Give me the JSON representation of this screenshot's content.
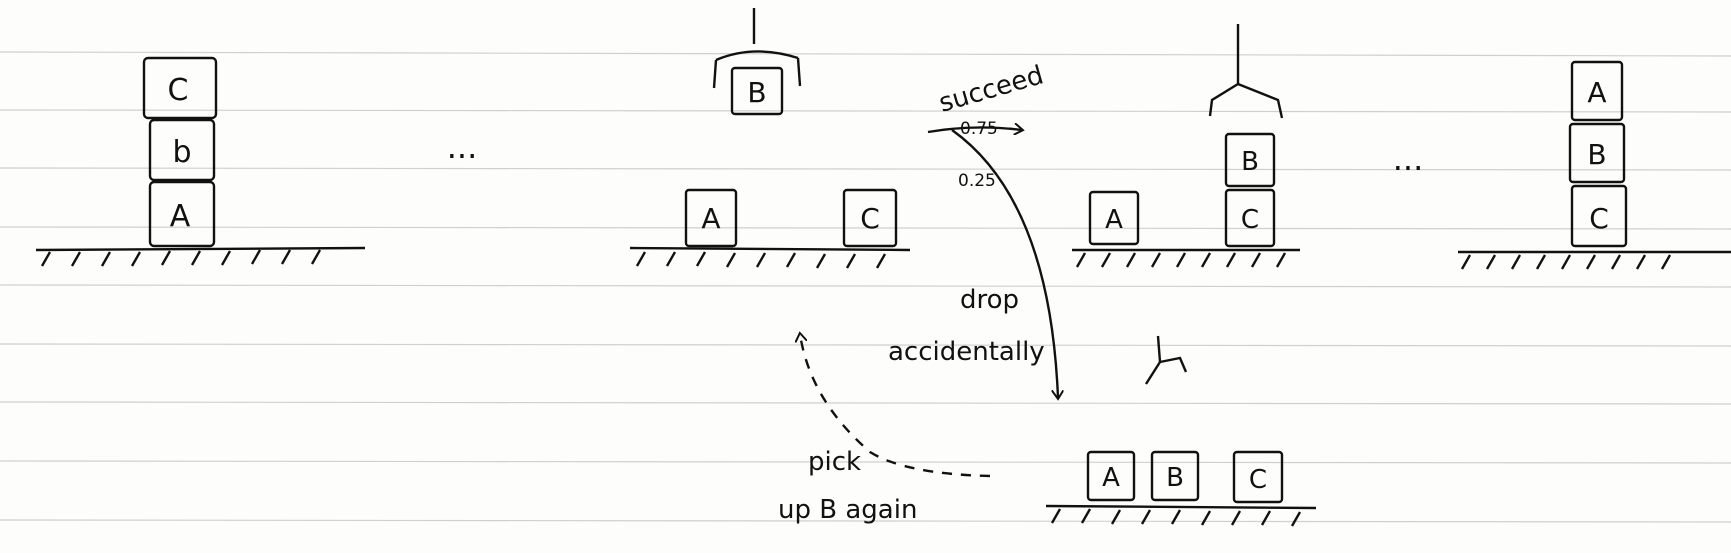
{
  "blocks": {
    "s1": [
      "C",
      "b",
      "A"
    ],
    "s2_held": "B",
    "s2_table": [
      "A",
      "C"
    ],
    "s3_stack": [
      "B",
      "C"
    ],
    "s3_table": [
      "A"
    ],
    "s4": [
      "A",
      "B",
      "C"
    ],
    "s5": [
      "A",
      "B",
      "C"
    ]
  },
  "ellipses": [
    "...",
    "..."
  ],
  "transitions": {
    "succeed_label": "succeed",
    "succeed_prob": "0.75",
    "drop_prob": "0.25",
    "drop_label_line1": "drop",
    "drop_label_line2": "accidentally",
    "pick_label_line1": "pick",
    "pick_label_line2": "up B again"
  },
  "colors": {
    "ink": "#111111",
    "paper": "#fdfdfc",
    "rule": "#d2d2d2"
  }
}
